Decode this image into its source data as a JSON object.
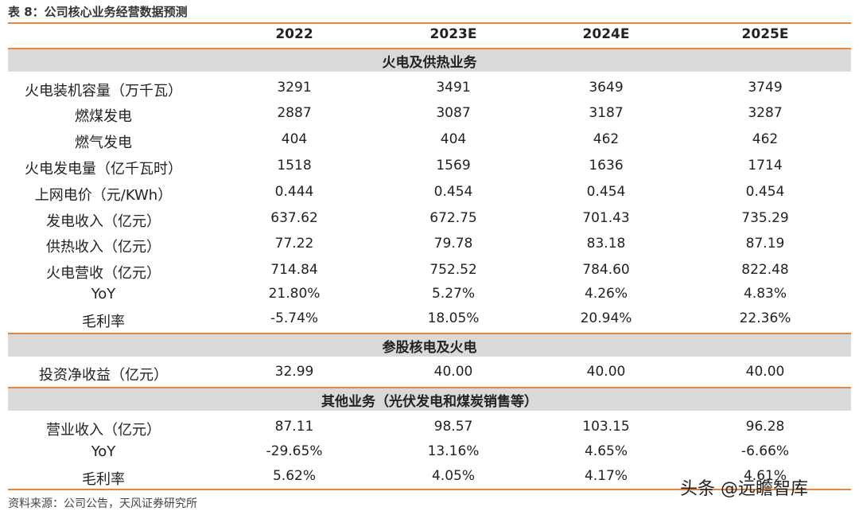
{
  "title": "表 8：公司核心业务经营数据预测",
  "headers": [
    "",
    "2022",
    "2023E",
    "2024E",
    "2025E"
  ],
  "sections": [
    {
      "name": "火电及供热业务",
      "rows": [
        {
          "label": "火电装机容量（万千瓦）",
          "values": [
            "3291",
            "3491",
            "3649",
            "3749"
          ]
        },
        {
          "label": "燃煤发电",
          "values": [
            "2887",
            "3087",
            "3187",
            "3287"
          ]
        },
        {
          "label": "燃气发电",
          "values": [
            "404",
            "404",
            "462",
            "462"
          ]
        },
        {
          "label": "火电发电量（亿千瓦时）",
          "values": [
            "1518",
            "1569",
            "1636",
            "1714"
          ]
        },
        {
          "label": "上网电价（元/KWh）",
          "values": [
            "0.444",
            "0.454",
            "0.454",
            "0.454"
          ]
        },
        {
          "label": "发电收入（亿元）",
          "values": [
            "637.62",
            "672.75",
            "701.43",
            "735.29"
          ]
        },
        {
          "label": "供热收入（亿元）",
          "values": [
            "77.22",
            "79.78",
            "83.18",
            "87.19"
          ]
        },
        {
          "label": "火电营收（亿元）",
          "values": [
            "714.84",
            "752.52",
            "784.60",
            "822.48"
          ]
        },
        {
          "label": "YoY",
          "values": [
            "21.80%",
            "5.27%",
            "4.26%",
            "4.83%"
          ]
        },
        {
          "label": "毛利率",
          "values": [
            "-5.74%",
            "18.05%",
            "20.94%",
            "22.36%"
          ]
        }
      ]
    },
    {
      "name": "参股核电及火电",
      "rows": [
        {
          "label": "投资净收益（亿元）",
          "values": [
            "32.99",
            "40.00",
            "40.00",
            "40.00"
          ]
        }
      ]
    },
    {
      "name": "其他业务（光伏发电和煤炭销售等）",
      "rows": [
        {
          "label": "营业收入（亿元）",
          "values": [
            "87.11",
            "98.57",
            "103.15",
            "96.28"
          ]
        },
        {
          "label": "YoY",
          "values": [
            "-29.65%",
            "13.16%",
            "4.65%",
            "-6.66%"
          ]
        },
        {
          "label": "毛利率",
          "values": [
            "5.62%",
            "4.05%",
            "4.17%",
            "4.61%"
          ]
        }
      ]
    }
  ],
  "source": "资料来源：公司公告，天风证券研究所",
  "watermark": "头条 @远瞻智库",
  "colors": {
    "accent": "#e8833a",
    "section_bg": "#d9d9d9"
  }
}
